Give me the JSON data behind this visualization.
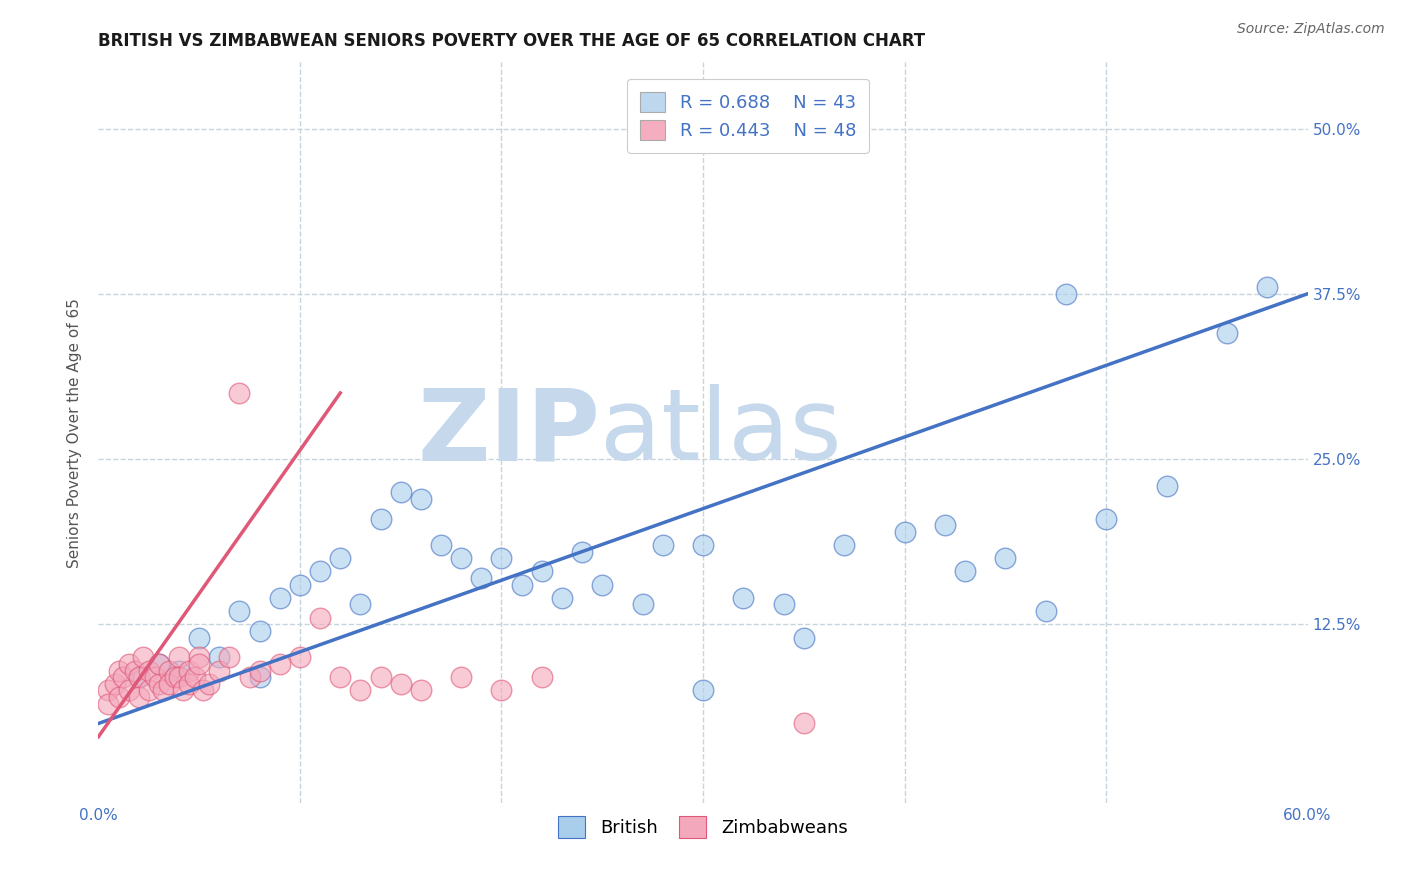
{
  "title": "BRITISH VS ZIMBABWEAN SENIORS POVERTY OVER THE AGE OF 65 CORRELATION CHART",
  "source": "Source: ZipAtlas.com",
  "ylabel": "Seniors Poverty Over the Age of 65",
  "xlim": [
    0.0,
    0.6
  ],
  "ylim": [
    -0.01,
    0.55
  ],
  "xticks": [
    0.0,
    0.1,
    0.2,
    0.3,
    0.4,
    0.5,
    0.6
  ],
  "xticklabels": [
    "0.0%",
    "",
    "",
    "",
    "",
    "",
    "60.0%"
  ],
  "ytick_positions": [
    0.125,
    0.25,
    0.375,
    0.5
  ],
  "yticklabels": [
    "12.5%",
    "25.0%",
    "37.5%",
    "50.0%"
  ],
  "british_R": 0.688,
  "british_N": 43,
  "zimbabwean_R": 0.443,
  "zimbabwean_N": 48,
  "british_color": "#A8CEEC",
  "zimbabwean_color": "#F4A8BC",
  "british_line_color": "#4472C4",
  "zimbabwean_line_color": "#E05878",
  "watermark_zip_color": "#C5D8EC",
  "watermark_atlas_color": "#C5D8EC",
  "grid_color": "#C8D4DC",
  "legend_box_color_british": "#BDD7EE",
  "legend_box_color_zimbabwean": "#F4AEBF",
  "title_fontsize": 12,
  "axis_label_fontsize": 11,
  "tick_fontsize": 11,
  "legend_fontsize": 13,
  "british_x": [
    0.02,
    0.03,
    0.04,
    0.05,
    0.06,
    0.07,
    0.08,
    0.08,
    0.09,
    0.1,
    0.11,
    0.12,
    0.13,
    0.14,
    0.15,
    0.16,
    0.17,
    0.18,
    0.19,
    0.2,
    0.21,
    0.22,
    0.23,
    0.24,
    0.25,
    0.27,
    0.28,
    0.3,
    0.3,
    0.32,
    0.34,
    0.35,
    0.37,
    0.4,
    0.42,
    0.43,
    0.45,
    0.47,
    0.48,
    0.5,
    0.53,
    0.56,
    0.58
  ],
  "british_y": [
    0.085,
    0.095,
    0.09,
    0.115,
    0.1,
    0.135,
    0.12,
    0.085,
    0.145,
    0.155,
    0.165,
    0.175,
    0.14,
    0.205,
    0.225,
    0.22,
    0.185,
    0.175,
    0.16,
    0.175,
    0.155,
    0.165,
    0.145,
    0.18,
    0.155,
    0.14,
    0.185,
    0.185,
    0.075,
    0.145,
    0.14,
    0.115,
    0.185,
    0.195,
    0.2,
    0.165,
    0.175,
    0.135,
    0.375,
    0.205,
    0.23,
    0.345,
    0.38
  ],
  "zimbabwean_x": [
    0.005,
    0.005,
    0.008,
    0.01,
    0.01,
    0.012,
    0.015,
    0.015,
    0.018,
    0.02,
    0.02,
    0.022,
    0.025,
    0.025,
    0.028,
    0.03,
    0.03,
    0.032,
    0.035,
    0.035,
    0.038,
    0.04,
    0.04,
    0.042,
    0.045,
    0.045,
    0.048,
    0.05,
    0.05,
    0.052,
    0.055,
    0.06,
    0.065,
    0.07,
    0.075,
    0.08,
    0.09,
    0.1,
    0.11,
    0.12,
    0.13,
    0.14,
    0.15,
    0.16,
    0.18,
    0.2,
    0.22,
    0.35
  ],
  "zimbabwean_y": [
    0.075,
    0.065,
    0.08,
    0.09,
    0.07,
    0.085,
    0.095,
    0.075,
    0.09,
    0.085,
    0.07,
    0.1,
    0.09,
    0.075,
    0.085,
    0.08,
    0.095,
    0.075,
    0.09,
    0.08,
    0.085,
    0.1,
    0.085,
    0.075,
    0.09,
    0.08,
    0.085,
    0.1,
    0.095,
    0.075,
    0.08,
    0.09,
    0.1,
    0.3,
    0.085,
    0.09,
    0.095,
    0.1,
    0.13,
    0.085,
    0.075,
    0.085,
    0.08,
    0.075,
    0.085,
    0.075,
    0.085,
    0.05
  ],
  "brit_line_x0": 0.0,
  "brit_line_x1": 0.6,
  "brit_line_y0": 0.05,
  "brit_line_y1": 0.375,
  "zim_line_x0": 0.0,
  "zim_line_x1": 0.12,
  "zim_line_y0": 0.04,
  "zim_line_y1": 0.3
}
